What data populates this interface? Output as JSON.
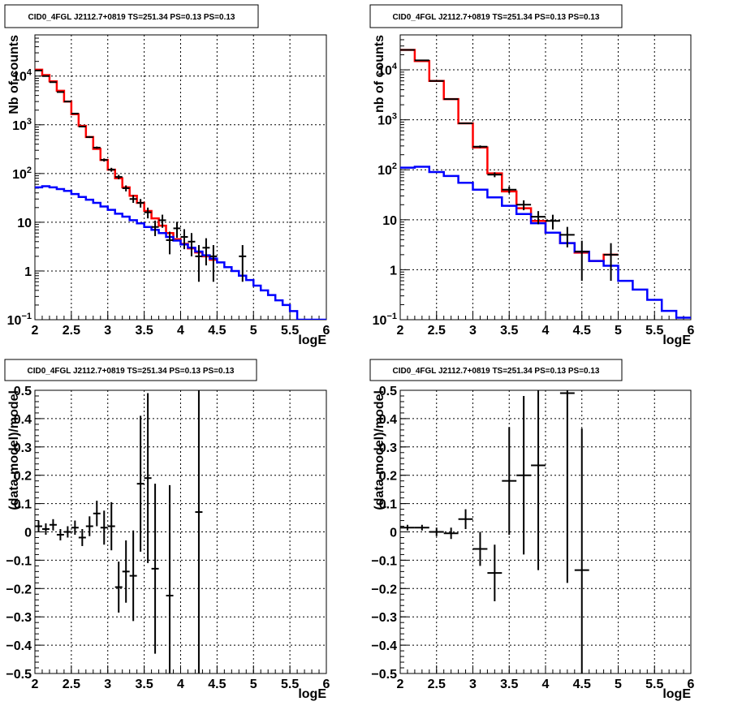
{
  "chart_data": [
    {
      "type": "line",
      "title": "CID0_4FGL J2112.7+0819 TS=251.34 PS=0.13 PS=0.13",
      "xlabel": "logE",
      "ylabel": "Nb of counts",
      "xlim": [
        2,
        6
      ],
      "ylim": [
        0.1,
        70000
      ],
      "yscale": "log",
      "grid": true,
      "x_ticks": [
        "2",
        "2.5",
        "3",
        "3.5",
        "4",
        "4.5",
        "5",
        "5.5",
        "6"
      ],
      "y_ticks": [
        {
          "v": 0.1,
          "base": "10",
          "exp": "−1"
        },
        {
          "v": 1,
          "label": "1"
        },
        {
          "v": 10,
          "label": "10"
        },
        {
          "v": 100,
          "base": "10",
          "exp": "2"
        },
        {
          "v": 1000,
          "base": "10",
          "exp": "3"
        },
        {
          "v": 10000,
          "base": "10",
          "exp": "4"
        }
      ],
      "series": [
        {
          "color": "#ff0000",
          "bin_edges": [
            2.0,
            2.1,
            2.2,
            2.3,
            2.4,
            2.5,
            2.6,
            2.7,
            2.8,
            2.9,
            3.0,
            3.1,
            3.2,
            3.3,
            3.4,
            3.5,
            3.6,
            3.7,
            3.8,
            3.9,
            4.0,
            4.1,
            4.2,
            4.3,
            4.4,
            4.5
          ],
          "values": [
            13500,
            10500,
            7800,
            5000,
            3000,
            1650,
            950,
            560,
            320,
            190,
            120,
            80,
            52,
            35,
            25,
            17,
            12,
            8.5,
            6.0,
            4.5,
            3.6,
            2.9,
            2.4,
            2.0,
            1.7
          ]
        },
        {
          "color": "#0000ff",
          "bin_edges": [
            2.0,
            2.1,
            2.2,
            2.3,
            2.4,
            2.5,
            2.6,
            2.7,
            2.8,
            2.9,
            3.0,
            3.1,
            3.2,
            3.3,
            3.4,
            3.5,
            3.6,
            3.7,
            3.8,
            3.9,
            4.0,
            4.1,
            4.2,
            4.3,
            4.4,
            4.5,
            4.6,
            4.7,
            4.8,
            4.9,
            5.0,
            5.1,
            5.2,
            5.3,
            5.4,
            5.5,
            5.6,
            5.7,
            5.8,
            5.9,
            6.0
          ],
          "values": [
            52,
            55,
            52,
            48,
            44,
            38,
            33,
            29,
            25,
            21,
            18,
            15,
            13,
            11,
            9.5,
            8,
            7,
            6,
            5,
            4.2,
            3.5,
            3,
            2.5,
            2.1,
            1.8,
            1.5,
            1.2,
            1.0,
            0.8,
            0.65,
            0.5,
            0.4,
            0.32,
            0.25,
            0.2,
            0.15,
            0.1,
            0.1,
            0.1,
            0.1
          ]
        }
      ],
      "data_points": [
        {
          "x": 2.05,
          "y": 13000,
          "xerr": 0.05,
          "yerr": [
            110,
            110
          ]
        },
        {
          "x": 2.15,
          "y": 10000,
          "xerr": 0.05,
          "yerr": [
            100,
            100
          ]
        },
        {
          "x": 2.25,
          "y": 7500,
          "xerr": 0.05,
          "yerr": [
            90,
            90
          ]
        },
        {
          "x": 2.35,
          "y": 4700,
          "xerr": 0.05,
          "yerr": [
            70,
            70
          ]
        },
        {
          "x": 2.45,
          "y": 3000,
          "xerr": 0.05,
          "yerr": [
            55,
            55
          ]
        },
        {
          "x": 2.55,
          "y": 1700,
          "xerr": 0.05,
          "yerr": [
            40,
            40
          ]
        },
        {
          "x": 2.65,
          "y": 920,
          "xerr": 0.05,
          "yerr": [
            30,
            30
          ]
        },
        {
          "x": 2.75,
          "y": 560,
          "xerr": 0.05,
          "yerr": [
            24,
            24
          ]
        },
        {
          "x": 2.85,
          "y": 340,
          "xerr": 0.05,
          "yerr": [
            18,
            18
          ]
        },
        {
          "x": 2.95,
          "y": 190,
          "xerr": 0.05,
          "yerr": [
            14,
            14
          ]
        },
        {
          "x": 3.05,
          "y": 120,
          "xerr": 0.05,
          "yerr": [
            11,
            11
          ]
        },
        {
          "x": 3.15,
          "y": 85,
          "xerr": 0.05,
          "yerr": [
            9,
            9
          ]
        },
        {
          "x": 3.25,
          "y": 50,
          "xerr": 0.05,
          "yerr": [
            7,
            7
          ]
        },
        {
          "x": 3.35,
          "y": 30,
          "xerr": 0.05,
          "yerr": [
            5,
            6
          ]
        },
        {
          "x": 3.45,
          "y": 25,
          "xerr": 0.05,
          "yerr": [
            5,
            5
          ]
        },
        {
          "x": 3.55,
          "y": 16,
          "xerr": 0.05,
          "yerr": [
            4,
            4
          ]
        },
        {
          "x": 3.65,
          "y": 8,
          "xerr": 0.05,
          "yerr": [
            2.8,
            2.8
          ]
        },
        {
          "x": 3.75,
          "y": 11,
          "xerr": 0.05,
          "yerr": [
            3.3,
            3.3
          ]
        },
        {
          "x": 3.85,
          "y": 4.3,
          "xerr": 0.05,
          "yerr": [
            2.1,
            2.1
          ]
        },
        {
          "x": 3.95,
          "y": 7.5,
          "xerr": 0.05,
          "yerr": [
            2.7,
            2.7
          ]
        },
        {
          "x": 4.05,
          "y": 5,
          "xerr": 0.05,
          "yerr": [
            2.2,
            2.2
          ]
        },
        {
          "x": 4.15,
          "y": 4,
          "xerr": 0.05,
          "yerr": [
            2.0,
            2.0
          ]
        },
        {
          "x": 4.25,
          "y": 2,
          "xerr": 0.05,
          "yerr": [
            1.4,
            1.4
          ]
        },
        {
          "x": 4.35,
          "y": 3,
          "xerr": 0.05,
          "yerr": [
            1.7,
            1.7
          ]
        },
        {
          "x": 4.45,
          "y": 2,
          "xerr": 0.05,
          "yerr": [
            1.4,
            1.4
          ]
        },
        {
          "x": 4.85,
          "y": 2,
          "xerr": 0.05,
          "yerr": [
            1.4,
            1.4
          ]
        }
      ]
    },
    {
      "type": "line",
      "title": "CID0_4FGL J2112.7+0819 TS=251.34 PS=0.13 PS=0.13",
      "xlabel": "logE",
      "ylabel": "nb of counts",
      "xlim": [
        2,
        6
      ],
      "ylim": [
        0.1,
        50000
      ],
      "yscale": "log",
      "grid": true,
      "x_ticks": [
        "2",
        "2.5",
        "3",
        "3.5",
        "4",
        "4.5",
        "5",
        "5.5",
        "6"
      ],
      "y_ticks": [
        {
          "v": 0.1,
          "base": "10",
          "exp": "−1"
        },
        {
          "v": 1,
          "label": "1"
        },
        {
          "v": 10,
          "label": "10"
        },
        {
          "v": 100,
          "base": "10",
          "exp": "2"
        },
        {
          "v": 1000,
          "base": "10",
          "exp": "3"
        },
        {
          "v": 10000,
          "base": "10",
          "exp": "4"
        }
      ],
      "series": [
        {
          "color": "#ff0000",
          "bin_edges": [
            2.0,
            2.2,
            2.4,
            2.6,
            2.8,
            3.0,
            3.2,
            3.4,
            3.6,
            3.8,
            4.0,
            4.2,
            4.4,
            4.6,
            4.8,
            5.0
          ],
          "values": [
            25000,
            15000,
            6000,
            2600,
            850,
            280,
            85,
            37,
            17,
            9.5,
            5.5,
            3.4,
            2.2,
            1.5,
            2.0
          ]
        },
        {
          "color": "#0000ff",
          "bin_edges": [
            2.0,
            2.2,
            2.4,
            2.6,
            2.8,
            3.0,
            3.2,
            3.4,
            3.6,
            3.8,
            4.0,
            4.2,
            4.4,
            4.6,
            4.8,
            5.0,
            5.2,
            5.4,
            5.6,
            5.8,
            6.0
          ],
          "values": [
            110,
            115,
            90,
            75,
            55,
            40,
            28,
            19,
            13,
            8.5,
            5.5,
            3.4,
            2.3,
            1.5,
            1.2,
            0.6,
            0.4,
            0.25,
            0.15,
            0.11
          ]
        }
      ],
      "data_points": [
        {
          "x": 2.1,
          "y": 25000,
          "xerr": 0.1,
          "yerr": [
            160,
            160
          ]
        },
        {
          "x": 2.3,
          "y": 15500,
          "xerr": 0.1,
          "yerr": [
            125,
            125
          ]
        },
        {
          "x": 2.5,
          "y": 6000,
          "xerr": 0.1,
          "yerr": [
            78,
            78
          ]
        },
        {
          "x": 2.7,
          "y": 2600,
          "xerr": 0.1,
          "yerr": [
            51,
            51
          ]
        },
        {
          "x": 2.9,
          "y": 850,
          "xerr": 0.1,
          "yerr": [
            29,
            29
          ]
        },
        {
          "x": 3.1,
          "y": 290,
          "xerr": 0.1,
          "yerr": [
            17,
            17
          ]
        },
        {
          "x": 3.3,
          "y": 80,
          "xerr": 0.1,
          "yerr": [
            9,
            9
          ]
        },
        {
          "x": 3.5,
          "y": 40,
          "xerr": 0.1,
          "yerr": [
            6,
            6
          ]
        },
        {
          "x": 3.7,
          "y": 20,
          "xerr": 0.1,
          "yerr": [
            4.5,
            4.5
          ]
        },
        {
          "x": 3.9,
          "y": 11.5,
          "xerr": 0.1,
          "yerr": [
            3.4,
            3.4
          ]
        },
        {
          "x": 4.1,
          "y": 9.5,
          "xerr": 0.1,
          "yerr": [
            3.1,
            3.1
          ]
        },
        {
          "x": 4.3,
          "y": 5,
          "xerr": 0.1,
          "yerr": [
            2.2,
            2.2
          ]
        },
        {
          "x": 4.5,
          "y": 2.3,
          "xerr": 0.1,
          "yerr": [
            1.7,
            1.5
          ]
        },
        {
          "x": 4.9,
          "y": 2,
          "xerr": 0.1,
          "yerr": [
            1.4,
            1.4
          ]
        }
      ]
    },
    {
      "type": "scatter",
      "title": "CID0_4FGL J2112.7+0819 TS=251.34 PS=0.13 PS=0.13",
      "xlabel": "logE",
      "ylabel": "(data-model)/model",
      "xlim": [
        2,
        6
      ],
      "ylim": [
        -0.5,
        0.5
      ],
      "grid": true,
      "x_ticks": [
        "2",
        "2.5",
        "3",
        "3.5",
        "4",
        "4.5",
        "5",
        "5.5",
        "6"
      ],
      "y_ticks": [
        {
          "v": -0.5,
          "label": "−0.5"
        },
        {
          "v": -0.4,
          "label": "−0.4"
        },
        {
          "v": -0.3,
          "label": "−0.3"
        },
        {
          "v": -0.2,
          "label": "−0.2"
        },
        {
          "v": -0.1,
          "label": "−0.1"
        },
        {
          "v": 0,
          "label": "0"
        },
        {
          "v": 0.1,
          "label": "0.1"
        },
        {
          "v": 0.2,
          "label": "0.2"
        },
        {
          "v": 0.3,
          "label": "0.3"
        },
        {
          "v": 0.4,
          "label": "0.4"
        },
        {
          "v": 0.5,
          "label": "0.5"
        }
      ],
      "data_points": [
        {
          "x": 2.05,
          "y": 0.02,
          "xerr": 0.05,
          "yerr": [
            0.02,
            0.02
          ]
        },
        {
          "x": 2.15,
          "y": 0.01,
          "xerr": 0.05,
          "yerr": [
            0.02,
            0.02
          ]
        },
        {
          "x": 2.25,
          "y": 0.025,
          "xerr": 0.05,
          "yerr": [
            0.02,
            0.02
          ]
        },
        {
          "x": 2.35,
          "y": -0.01,
          "xerr": 0.05,
          "yerr": [
            0.02,
            0.02
          ]
        },
        {
          "x": 2.45,
          "y": 0.0,
          "xerr": 0.05,
          "yerr": [
            0.02,
            0.02
          ]
        },
        {
          "x": 2.55,
          "y": 0.015,
          "xerr": 0.05,
          "yerr": [
            0.025,
            0.025
          ]
        },
        {
          "x": 2.65,
          "y": -0.02,
          "xerr": 0.05,
          "yerr": [
            0.03,
            0.03
          ]
        },
        {
          "x": 2.75,
          "y": 0.02,
          "xerr": 0.05,
          "yerr": [
            0.035,
            0.035
          ]
        },
        {
          "x": 2.85,
          "y": 0.065,
          "xerr": 0.05,
          "yerr": [
            0.045,
            0.045
          ]
        },
        {
          "x": 2.95,
          "y": 0.015,
          "xerr": 0.05,
          "yerr": [
            0.06,
            0.06
          ]
        },
        {
          "x": 3.05,
          "y": 0.02,
          "xerr": 0.05,
          "yerr": [
            0.085,
            0.085
          ]
        },
        {
          "x": 3.15,
          "y": -0.195,
          "xerr": 0.05,
          "yerr": [
            0.09,
            0.09
          ]
        },
        {
          "x": 3.25,
          "y": -0.14,
          "xerr": 0.05,
          "yerr": [
            0.11,
            0.11
          ]
        },
        {
          "x": 3.35,
          "y": -0.155,
          "xerr": 0.05,
          "yerr": [
            0.16,
            0.16
          ]
        },
        {
          "x": 3.45,
          "y": 0.17,
          "xerr": 0.05,
          "yerr": [
            0.24,
            0.24
          ]
        },
        {
          "x": 3.55,
          "y": 0.19,
          "xerr": 0.05,
          "yerr": [
            0.3,
            0.3
          ]
        },
        {
          "x": 3.65,
          "y": -0.13,
          "xerr": 0.05,
          "yerr": [
            0.3,
            0.3
          ]
        },
        {
          "x": 3.85,
          "y": -0.225,
          "xerr": 0.05,
          "yerr": [
            0.39,
            0.39
          ]
        },
        {
          "x": 4.25,
          "y": 0.07,
          "xerr": 0.05,
          "yerr": [
            0.7,
            0.7
          ]
        }
      ]
    },
    {
      "type": "scatter",
      "title": "CID0_4FGL J2112.7+0819 TS=251.34 PS=0.13 PS=0.13",
      "xlabel": "logE",
      "ylabel": "(data-model)/model",
      "xlim": [
        2,
        6
      ],
      "ylim": [
        -0.5,
        0.5
      ],
      "grid": true,
      "x_ticks": [
        "2",
        "2.5",
        "3",
        "3.5",
        "4",
        "4.5",
        "5",
        "5.5",
        "6"
      ],
      "y_ticks": [
        {
          "v": -0.5,
          "label": "−0.5"
        },
        {
          "v": -0.4,
          "label": "−0.4"
        },
        {
          "v": -0.3,
          "label": "−0.3"
        },
        {
          "v": -0.2,
          "label": "−0.2"
        },
        {
          "v": -0.1,
          "label": "−0.1"
        },
        {
          "v": 0,
          "label": "0"
        },
        {
          "v": 0.1,
          "label": "0.1"
        },
        {
          "v": 0.2,
          "label": "0.2"
        },
        {
          "v": 0.3,
          "label": "0.3"
        },
        {
          "v": 0.4,
          "label": "0.4"
        },
        {
          "v": 0.5,
          "label": "0.5"
        }
      ],
      "data_points": [
        {
          "x": 2.1,
          "y": 0.015,
          "xerr": 0.1,
          "yerr": [
            0.01,
            0.01
          ]
        },
        {
          "x": 2.3,
          "y": 0.015,
          "xerr": 0.1,
          "yerr": [
            0.01,
            0.01
          ]
        },
        {
          "x": 2.5,
          "y": 0.0,
          "xerr": 0.1,
          "yerr": [
            0.015,
            0.015
          ]
        },
        {
          "x": 2.7,
          "y": -0.005,
          "xerr": 0.1,
          "yerr": [
            0.02,
            0.02
          ]
        },
        {
          "x": 2.9,
          "y": 0.045,
          "xerr": 0.1,
          "yerr": [
            0.035,
            0.035
          ]
        },
        {
          "x": 3.1,
          "y": -0.06,
          "xerr": 0.1,
          "yerr": [
            0.06,
            0.06
          ]
        },
        {
          "x": 3.3,
          "y": -0.145,
          "xerr": 0.1,
          "yerr": [
            0.1,
            0.1
          ]
        },
        {
          "x": 3.5,
          "y": 0.18,
          "xerr": 0.1,
          "yerr": [
            0.19,
            0.19
          ]
        },
        {
          "x": 3.7,
          "y": 0.2,
          "xerr": 0.1,
          "yerr": [
            0.28,
            0.28
          ]
        },
        {
          "x": 3.9,
          "y": 0.235,
          "xerr": 0.1,
          "yerr": [
            0.37,
            0.37
          ]
        },
        {
          "x": 4.3,
          "y": 0.49,
          "xerr": 0.1,
          "yerr": [
            0.67,
            0.67
          ]
        },
        {
          "x": 4.5,
          "y": -0.135,
          "xerr": 0.1,
          "yerr": [
            0.5,
            0.5
          ]
        }
      ]
    }
  ]
}
